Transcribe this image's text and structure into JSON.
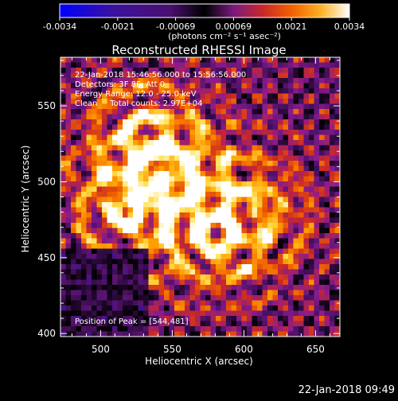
{
  "colorbar": {
    "tick_labels": [
      "-0.0034",
      "-0.0021",
      "-0.00069",
      "0.00069",
      "0.0021",
      "0.0034"
    ],
    "units_label": "(photons cm⁻² s⁻¹ asec⁻²)",
    "range": [
      -0.0034,
      0.0034
    ]
  },
  "chart_data": {
    "type": "heatmap",
    "title": "Reconstructed RHESSI Image",
    "xlabel": "Heliocentric X (arcsec)",
    "ylabel": "Heliocentric Y (arcsec)",
    "xlim": [
      472,
      667
    ],
    "ylim": [
      398,
      582
    ],
    "x_ticks": [
      500,
      550,
      600,
      650
    ],
    "y_ticks": [
      400,
      450,
      500,
      550
    ],
    "grid": false,
    "colormap": [
      "#0000ff",
      "#3a10a0",
      "#5a1470",
      "#000000",
      "#4a1068",
      "#8c1c8c",
      "#c82828",
      "#f06000",
      "#ffa000",
      "#ffe050",
      "#ffffff"
    ],
    "peak_position": [
      544,
      481
    ],
    "annotations": [
      "22-Jan-2018 15:46:56.000 to 15:56:56.000",
      "Detectors: 3F 8F, Att 0",
      "Energy Range: 12.0 - 25.0 keV",
      "Clean     Total counts: 2.97E+04",
      "Position of Peak = [544,481]"
    ]
  },
  "footer": {
    "timestamp": "22-Jan-2018 09:49"
  }
}
